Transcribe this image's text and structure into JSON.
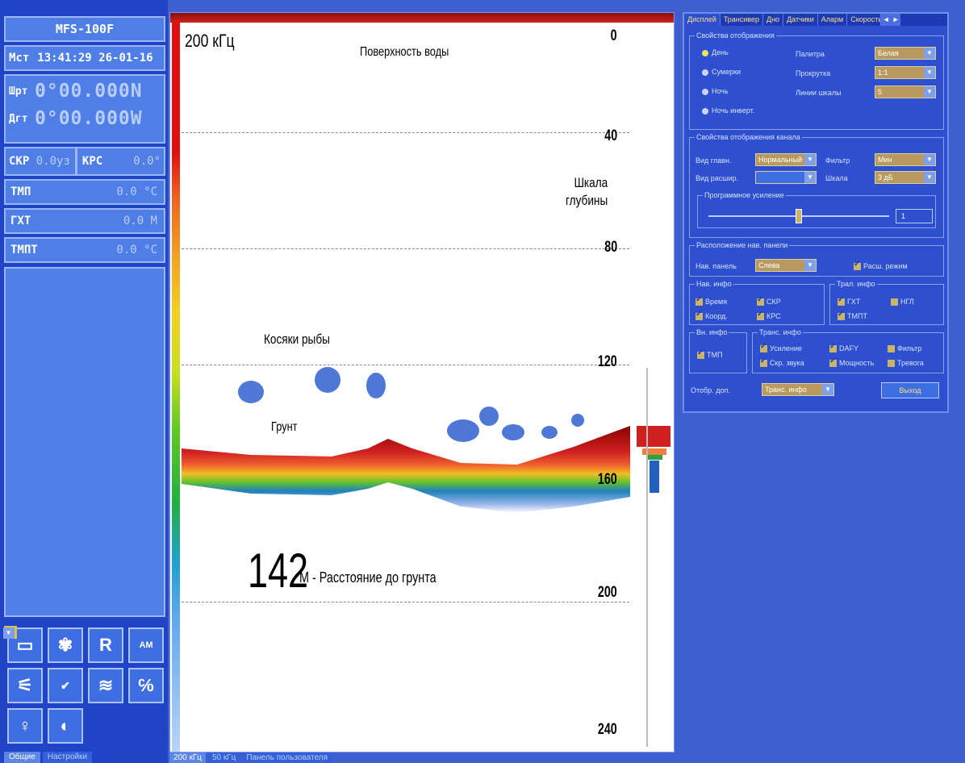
{
  "left": {
    "device": "MFS-100F",
    "time_label": "Мст",
    "time_value": "13:41:29 26-01-16",
    "lat_label": "Шрт",
    "lat_value": "0°00.000N",
    "lon_label": "Дгт",
    "lon_value": "0°00.000W",
    "speed_label": "СКР",
    "speed_value": "0.0уз",
    "course_label": "КРС",
    "course_value": "0.0°",
    "temp_label": "ТМП",
    "temp_value": "0.0 °С",
    "depth_label": "ГХТ",
    "depth_value": "0.0 М",
    "temp2_label": "ТМПТ",
    "temp2_value": "0.0 °С",
    "tabs": [
      "Общие",
      "Настройки"
    ]
  },
  "echo": {
    "frequency": "200 кГц",
    "surface": "Поверхность воды",
    "scale_ann": [
      "Шкала",
      "глубины"
    ],
    "fish_ann": "Косяки рыбы",
    "bottom_ann": "Грунт",
    "depth_big": "142",
    "depth_text": "М - Расстояние до грунта",
    "depth_labels": [
      "0",
      "40",
      "80",
      "120",
      "160",
      "200",
      "240"
    ],
    "tabs": [
      "200 кГц",
      "50 кГц",
      "Панель пользователя"
    ]
  },
  "settings": {
    "tabs": [
      "Дисплей",
      "Трансивер",
      "Дно",
      "Датчики",
      "Аларм",
      "Скорость"
    ],
    "display_props_legend": "Свойства отображения",
    "modes": [
      "День",
      "Сумерки",
      "Ночь",
      "Ночь инверт."
    ],
    "palette_label": "Палитра",
    "palette_value": "Белая",
    "scroll_label": "Прокрутка",
    "scroll_value": "1:1",
    "scalelines_label": "Линии шкалы",
    "scalelines_value": "5",
    "channel_legend": "Свойства отображения канала",
    "mainview_label": "Вид главн.",
    "mainview_value": "Нормальный",
    "filter_label": "Фильтр",
    "filter_value": "Мин",
    "extview_label": "Вид расшир.",
    "scale_label": "Шкала",
    "scale_value": "3 дБ",
    "gain_legend": "Программное усиление",
    "gain_value": "1",
    "navpanel_legend": "Расположение нав. панели",
    "navpanel_label": "Нав. панель",
    "navpanel_value": "Слева",
    "extmode_label": "Расш. режим",
    "navinfo_legend": "Нав. инфо",
    "navinfo": [
      "Время",
      "СКР",
      "Коорд.",
      "КРС"
    ],
    "trawl_legend": "Трал. инфо",
    "trawl": [
      "ГХТ",
      "НГЛ",
      "ТМПТ"
    ],
    "ext_legend": "Вн. инфо",
    "ext": [
      "ТМП"
    ],
    "trans_legend": "Транс. инфо",
    "trans": [
      "Усиление",
      "DAFY",
      "Фильтр",
      "Скр. звука",
      "Мощность",
      "Тревога"
    ],
    "show_label": "Отобр. доп.",
    "show_value": "Транс. инфо",
    "exit_label": "Выход"
  }
}
